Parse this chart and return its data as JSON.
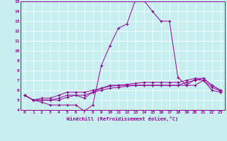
{
  "xlabel": "Windchill (Refroidissement éolien,°C)",
  "xlim": [
    -0.5,
    23.5
  ],
  "ylim": [
    4,
    15
  ],
  "xticks": [
    0,
    1,
    2,
    3,
    4,
    5,
    6,
    7,
    8,
    9,
    10,
    11,
    12,
    13,
    14,
    15,
    16,
    17,
    18,
    19,
    20,
    21,
    22,
    23
  ],
  "yticks": [
    4,
    5,
    6,
    7,
    8,
    9,
    10,
    11,
    12,
    13,
    14,
    15
  ],
  "bg_color": "#c8eef0",
  "line_color": "#990099",
  "grid_color": "#ffffff",
  "lines": [
    [
      5.5,
      5.0,
      4.8,
      4.5,
      4.5,
      4.5,
      4.5,
      3.9,
      4.5,
      8.5,
      10.5,
      12.3,
      12.7,
      15.1,
      15.1,
      14.0,
      13.0,
      13.0,
      7.3,
      6.5,
      7.1,
      7.0,
      6.0,
      5.8
    ],
    [
      5.5,
      5.0,
      5.0,
      5.0,
      5.0,
      5.3,
      5.5,
      5.2,
      5.8,
      6.2,
      6.5,
      6.5,
      6.5,
      6.5,
      6.5,
      6.5,
      6.5,
      6.5,
      6.5,
      6.5,
      6.5,
      7.0,
      6.3,
      5.9
    ],
    [
      5.5,
      5.0,
      5.0,
      5.0,
      5.2,
      5.5,
      5.5,
      5.5,
      5.8,
      6.0,
      6.2,
      6.3,
      6.4,
      6.5,
      6.5,
      6.5,
      6.5,
      6.5,
      6.5,
      6.8,
      7.0,
      7.2,
      6.5,
      6.0
    ],
    [
      5.5,
      5.0,
      5.2,
      5.2,
      5.5,
      5.8,
      5.8,
      5.8,
      6.0,
      6.2,
      6.4,
      6.5,
      6.6,
      6.7,
      6.8,
      6.8,
      6.8,
      6.8,
      6.8,
      7.0,
      7.2,
      7.2,
      6.5,
      6.0
    ]
  ]
}
